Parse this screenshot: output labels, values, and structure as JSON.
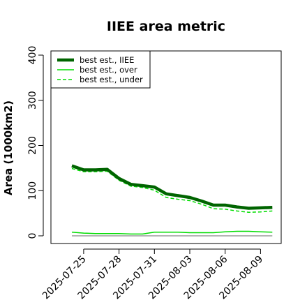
{
  "chart_data": {
    "type": "line",
    "title": "IIEE area metric",
    "xlabel": "",
    "ylabel": "Area (1000km2)",
    "ylim": [
      0,
      400
    ],
    "yticks": [
      0,
      100,
      200,
      300,
      400
    ],
    "x": [
      "2025-07-24",
      "2025-07-25",
      "2025-07-26",
      "2025-07-27",
      "2025-07-28",
      "2025-07-29",
      "2025-07-30",
      "2025-07-31",
      "2025-08-01",
      "2025-08-02",
      "2025-08-03",
      "2025-08-04",
      "2025-08-05",
      "2025-08-06",
      "2025-08-07",
      "2025-08-08",
      "2025-08-09",
      "2025-08-10"
    ],
    "xticks": [
      "2025-07-25",
      "2025-07-28",
      "2025-07-31",
      "2025-08-03",
      "2025-08-06",
      "2025-08-09"
    ],
    "series": [
      {
        "name": "best est., IIEE",
        "color": "#006400",
        "dash": "solid",
        "width": "thick",
        "values": [
          155,
          146,
          146,
          147,
          127,
          114,
          111,
          108,
          93,
          89,
          85,
          77,
          68,
          68,
          64,
          61,
          62,
          63
        ]
      },
      {
        "name": "best est., over",
        "color": "#00dd00",
        "dash": "solid",
        "width": "thin",
        "values": [
          8,
          6,
          5,
          5,
          5,
          4,
          4,
          8,
          8,
          8,
          7,
          7,
          7,
          9,
          10,
          10,
          9,
          8
        ]
      },
      {
        "name": "best est., under",
        "color": "#00dd00",
        "dash": "dashed",
        "width": "thin",
        "values": [
          149,
          142,
          142,
          143,
          123,
          110,
          107,
          101,
          85,
          81,
          78,
          70,
          60,
          59,
          55,
          52,
          53,
          55
        ]
      }
    ],
    "reference_line": {
      "y": 0,
      "color": "#888888"
    },
    "legend_position": "top-left",
    "grid": false
  }
}
